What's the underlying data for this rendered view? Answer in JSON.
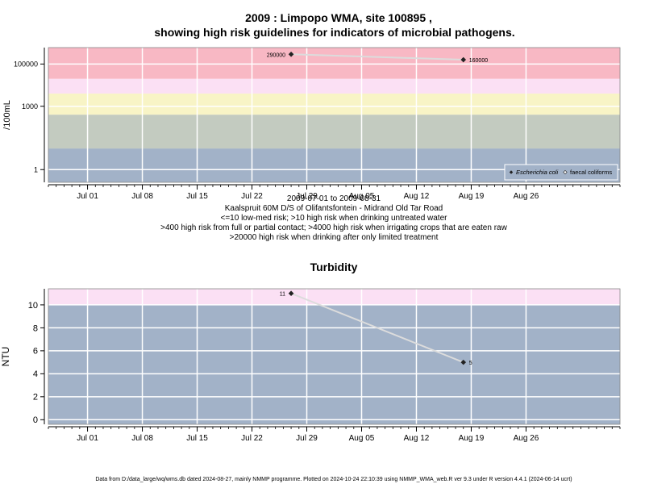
{
  "title_line1": "2009 : Limpopo WMA, site 100895 ,",
  "title_line2": "showing high risk guidelines for indicators of microbial pathogens.",
  "chart_data": [
    {
      "type": "line",
      "log_y": true,
      "ylabel": "/100mL",
      "yticks": [
        {
          "v": 100000,
          "label": "100000"
        },
        {
          "v": 1000,
          "label": "1000"
        },
        {
          "v": 1,
          "label": "1"
        }
      ],
      "ylim": [
        0.25,
        600000
      ],
      "xlim": [
        "2009-06-26",
        "2009-09-07"
      ],
      "xticks": [
        {
          "date": "2009-07-01",
          "label": "Jul 01"
        },
        {
          "date": "2009-07-08",
          "label": "Jul 08"
        },
        {
          "date": "2009-07-15",
          "label": "Jul 15"
        },
        {
          "date": "2009-07-22",
          "label": "Jul 22"
        },
        {
          "date": "2009-07-29",
          "label": "Jul 29"
        },
        {
          "date": "2009-08-05",
          "label": "Aug 05"
        },
        {
          "date": "2009-08-12",
          "label": "Aug 12"
        },
        {
          "date": "2009-08-19",
          "label": "Aug 19"
        },
        {
          "date": "2009-08-26",
          "label": "Aug 26"
        }
      ],
      "bands": [
        {
          "from": 0.25,
          "to": 10,
          "color": "#a2b2c8"
        },
        {
          "from": 10,
          "to": 400,
          "color": "#c3cbc0"
        },
        {
          "from": 400,
          "to": 4000,
          "color": "#f8f4c6"
        },
        {
          "from": 4000,
          "to": 20000,
          "color": "#fbe0f4"
        },
        {
          "from": 20000,
          "to": 600000,
          "color": "#f8b8c4"
        }
      ],
      "series": [
        {
          "name": "Escherichia coli",
          "points": [
            {
              "date": "2009-07-27",
              "value": 290000,
              "label": "290000"
            },
            {
              "date": "2009-08-18",
              "value": 160000,
              "label": "160000"
            }
          ]
        }
      ],
      "legend_entries": [
        "Escherichia coli",
        "faecal coliforms"
      ],
      "legend_position": "bottom-right",
      "caption": [
        "2009-07-01 to 2009-08-31",
        "Kaalspruit 60M D/S of Olifantsfontein - Midrand Old Tar Road",
        "<=10 low-med risk; >10 high risk when drinking untreated water",
        ">400 high risk from full or partial contact; >4000 high risk when irrigating crops that are eaten raw",
        ">20000 high risk when drinking after only limited treatment"
      ]
    },
    {
      "type": "line",
      "title": "Turbidity",
      "ylabel": "NTU",
      "yticks": [
        0,
        2,
        4,
        6,
        8,
        10
      ],
      "ylim": [
        -0.4,
        11.4
      ],
      "xlim": [
        "2009-06-26",
        "2009-09-07"
      ],
      "xticks": [
        {
          "date": "2009-07-01",
          "label": "Jul 01"
        },
        {
          "date": "2009-07-08",
          "label": "Jul 08"
        },
        {
          "date": "2009-07-15",
          "label": "Jul 15"
        },
        {
          "date": "2009-07-22",
          "label": "Jul 22"
        },
        {
          "date": "2009-07-29",
          "label": "Jul 29"
        },
        {
          "date": "2009-08-05",
          "label": "Aug 05"
        },
        {
          "date": "2009-08-12",
          "label": "Aug 12"
        },
        {
          "date": "2009-08-19",
          "label": "Aug 19"
        },
        {
          "date": "2009-08-26",
          "label": "Aug 26"
        }
      ],
      "bands": [
        {
          "from": -0.4,
          "to": 10,
          "color": "#a2b2c8"
        },
        {
          "from": 10,
          "to": 11.4,
          "color": "#fbe0f4"
        }
      ],
      "series": [
        {
          "points": [
            {
              "date": "2009-07-27",
              "value": 11,
              "label": "11"
            },
            {
              "date": "2009-08-18",
              "value": 5,
              "label": "5"
            }
          ]
        }
      ]
    }
  ],
  "footer": "Data from D:/data_large/wq/wms.db dated 2024-08-27, mainly NMMP programme. Plotted on 2024-10-24 22:10:39 using NMMP_WMA_web.R ver 9.3 under R version 4.4.1 (2024-06-14 ucrt)"
}
